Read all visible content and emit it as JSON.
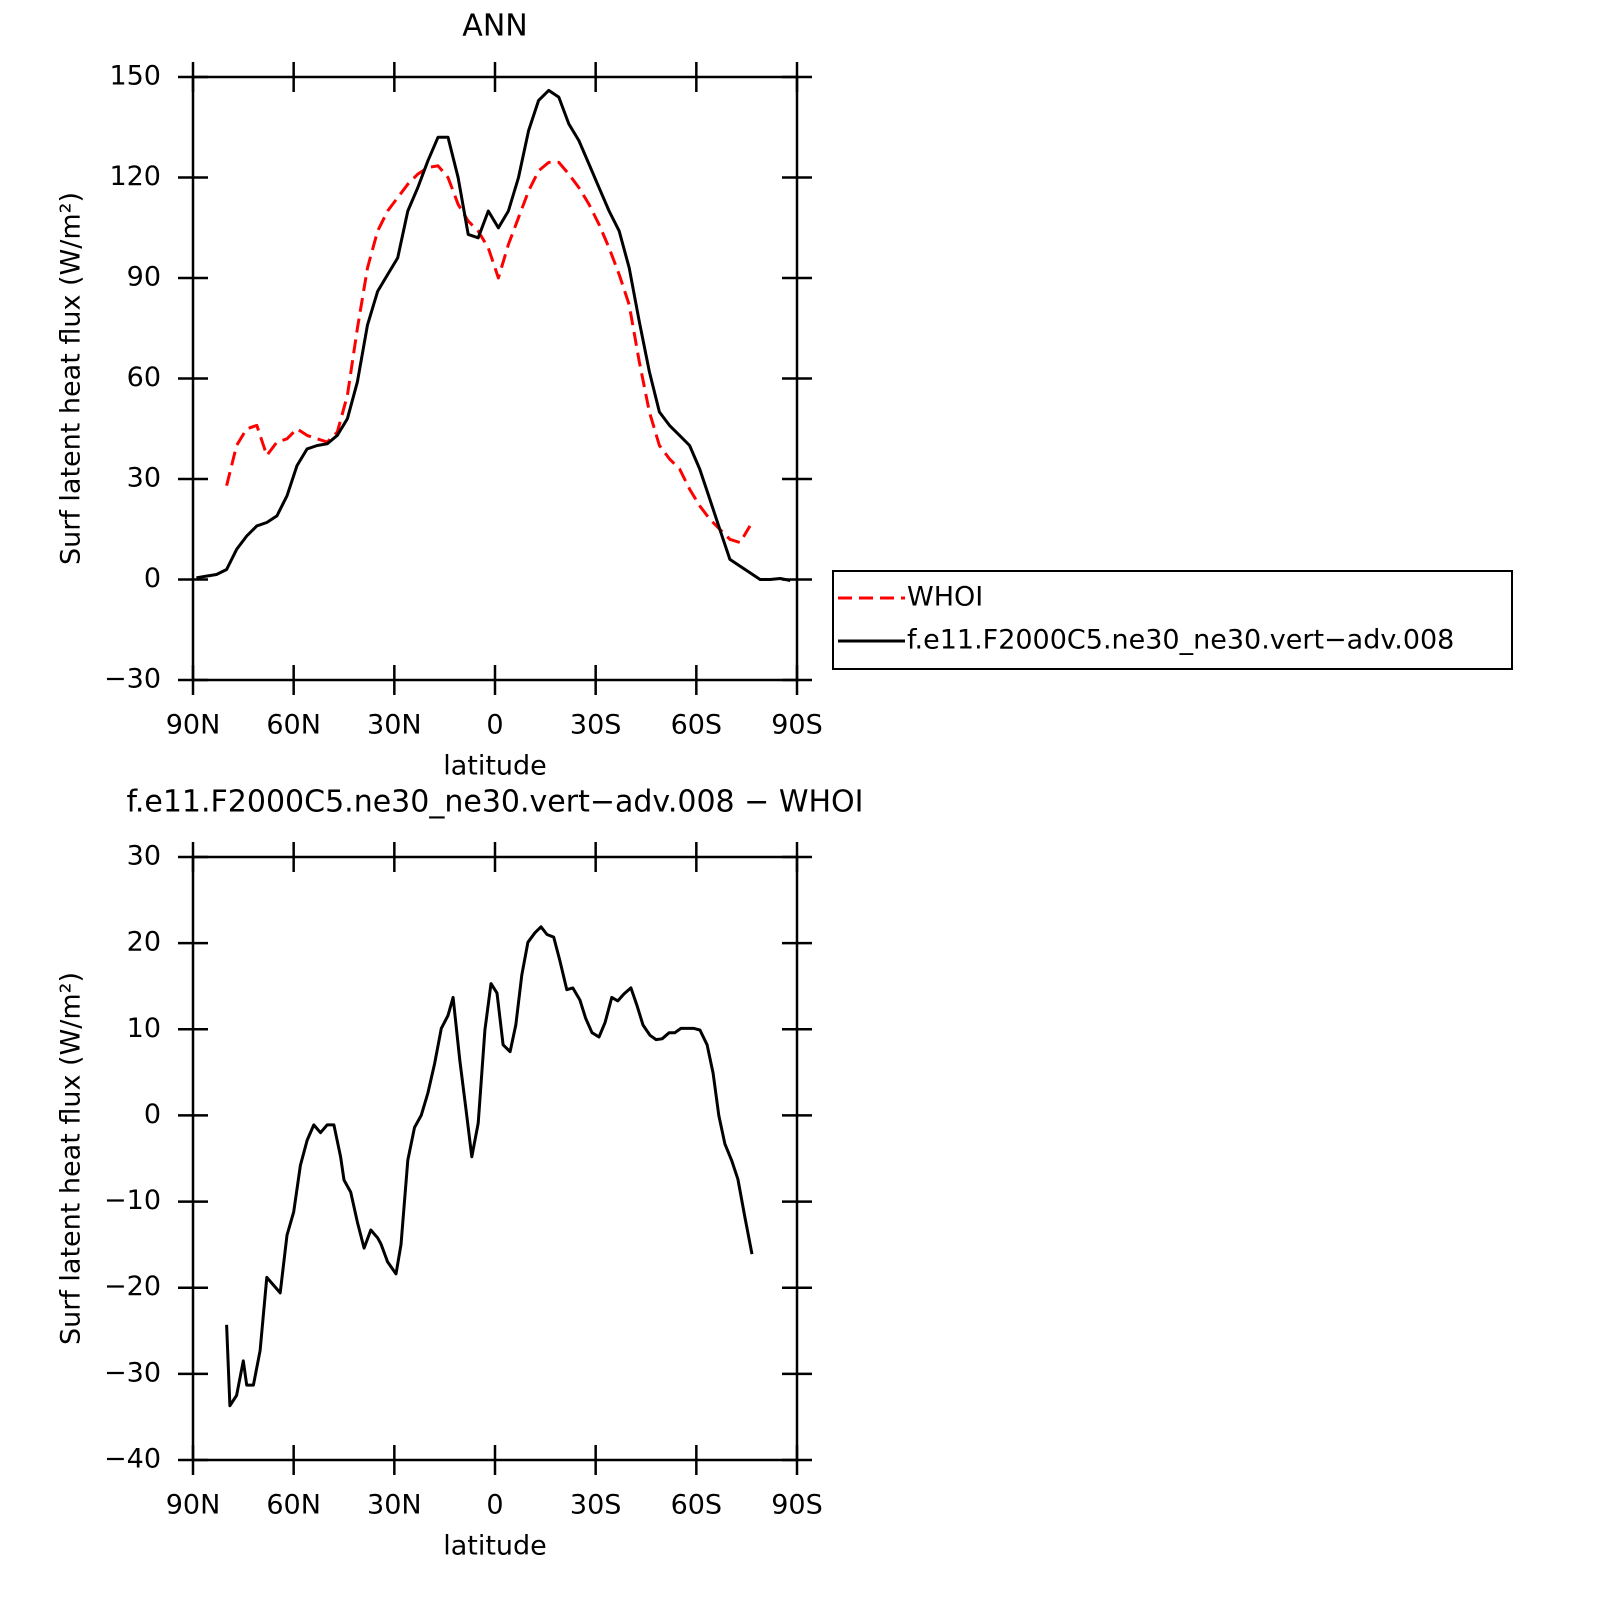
{
  "chart_data": [
    {
      "type": "line",
      "title": "ANN",
      "xlabel": "latitude",
      "ylabel": "Surf latent heat flux (W/m²)",
      "x": [
        89,
        86,
        83,
        80,
        77,
        74,
        71,
        68,
        65,
        62,
        59,
        56,
        53,
        50,
        47,
        44,
        41,
        38,
        35,
        32,
        29,
        26,
        23,
        20,
        17,
        14,
        11,
        8,
        5,
        2,
        -1,
        -4,
        -7,
        -10,
        -13,
        -16,
        -19,
        -22,
        -25,
        -28,
        -31,
        -34,
        -37,
        -40,
        -43,
        -46,
        -49,
        -52,
        -55,
        -58,
        -61,
        -64,
        -67,
        -70,
        -73,
        -76,
        -79,
        -82,
        -85,
        -88
      ],
      "series": [
        {
          "name": "WHOI",
          "color": "#ff0000",
          "linestyle": "dashed",
          "values": [
            null,
            null,
            null,
            28,
            40,
            45,
            46,
            37,
            41,
            42,
            45,
            43,
            42,
            41,
            44,
            55,
            75,
            93,
            104,
            110,
            114,
            118,
            121,
            123,
            123.5,
            120,
            112,
            107,
            104,
            99,
            90,
            100,
            108,
            116,
            122,
            124.5,
            124.5,
            121,
            117,
            112,
            106,
            99,
            91,
            82,
            65,
            50,
            40,
            36,
            33,
            27,
            22,
            18,
            15,
            12,
            11,
            16,
            null,
            null,
            null,
            null
          ]
        },
        {
          "name": "f.e11.F2000C5.ne30_ne30.vert−adv.008",
          "color": "#000000",
          "linestyle": "solid",
          "values": [
            0.5,
            1,
            1.5,
            3,
            9,
            13,
            16,
            17,
            19,
            25,
            34,
            39,
            40,
            40.5,
            43,
            48,
            59,
            76,
            86,
            91,
            96,
            110,
            117,
            125,
            132,
            132,
            120,
            103,
            102,
            110,
            105,
            110,
            120,
            134,
            143,
            146,
            144,
            136,
            131,
            124,
            117,
            110,
            104,
            93,
            77,
            62,
            50,
            46,
            43,
            40,
            33,
            24,
            15,
            6,
            4,
            2,
            0,
            0,
            0.3,
            -0.3
          ]
        }
      ],
      "xlim": [
        90,
        -90
      ],
      "xticks": [
        {
          "value": 90,
          "label": "90N"
        },
        {
          "value": 60,
          "label": "60N"
        },
        {
          "value": 30,
          "label": "30N"
        },
        0,
        {
          "value": -30,
          "label": "30S"
        },
        {
          "value": -60,
          "label": "60S"
        },
        {
          "value": -90,
          "label": "90S"
        }
      ],
      "ylim": [
        -30,
        150
      ],
      "yticks": [
        {
          "value": -30,
          "label": "−30"
        },
        0,
        30,
        60,
        90,
        120,
        150
      ],
      "legend": "right"
    },
    {
      "type": "line",
      "title": "f.e11.F2000C5.ne30_ne30.vert−adv.008 − WHOI",
      "xlabel": "latitude",
      "ylabel": "Surf latent heat flux (W/m²)",
      "x": [
        80,
        79,
        77,
        75,
        74,
        72,
        70,
        68,
        64,
        62,
        60,
        58,
        56,
        54,
        52,
        50,
        48,
        46,
        45,
        43,
        41,
        39,
        37,
        35,
        34,
        32,
        29.5,
        28,
        26,
        24,
        22,
        20,
        18,
        16,
        14,
        12.5,
        10.5,
        8.6,
        6.9,
        5,
        3,
        1.2,
        -0.6,
        -2.4,
        -4.5,
        -6.2,
        -8,
        -9.8,
        -11.9,
        -13.7,
        -15.5,
        -17.5,
        -19.3,
        -21.4,
        -23.2,
        -25.3,
        -27,
        -28.9,
        -31,
        -32.8,
        -34.8,
        -36.6,
        -38.4,
        -40.5,
        -42.3,
        -44.1,
        -46.2,
        -48,
        -49.8,
        -51.9,
        -53.6,
        -55.4,
        -57.5,
        -59.3,
        -61.1,
        -63.2,
        -65,
        -66.7,
        -68.5,
        -70.6,
        -72.4,
        -74.4,
        -76.6
      ],
      "series": [
        {
          "color": "#000000",
          "linestyle": "solid",
          "values": [
            -24.3,
            -33.7,
            -32.5,
            -28.5,
            -31.3,
            -31.3,
            -27.3,
            -18.8,
            -20.6,
            -13.9,
            -11.2,
            -5.8,
            -2.9,
            -1.1,
            -2,
            -1.1,
            -1.1,
            -4.8,
            -7.5,
            -8.9,
            -12.4,
            -15.4,
            -13.3,
            -14.2,
            -14.9,
            -17,
            -18.4,
            -15,
            -5.2,
            -1.4,
            0,
            2.6,
            6,
            10.1,
            11.6,
            13.7,
            6.4,
            0.6,
            -4.8,
            -0.9,
            9.9,
            15.3,
            14.2,
            8.2,
            7.4,
            10.5,
            16.3,
            20.1,
            21.2,
            21.9,
            21,
            20.7,
            18,
            14.6,
            14.8,
            13.4,
            11.3,
            9.6,
            9.1,
            10.8,
            13.7,
            13.3,
            14.1,
            14.8,
            12.8,
            10.5,
            9.3,
            8.8,
            8.9,
            9.6,
            9.6,
            10.1,
            10.1,
            10.1,
            9.9,
            8.2,
            4.9,
            0,
            -3.3,
            -5.3,
            -7.4,
            -11.7,
            -16.1
          ]
        }
      ],
      "xlim": [
        90,
        -90
      ],
      "xticks": [
        {
          "value": 90,
          "label": "90N"
        },
        {
          "value": 60,
          "label": "60N"
        },
        {
          "value": 30,
          "label": "30N"
        },
        0,
        {
          "value": -30,
          "label": "30S"
        },
        {
          "value": -60,
          "label": "60S"
        },
        {
          "value": -90,
          "label": "90S"
        }
      ],
      "ylim": [
        -40,
        30
      ],
      "yticks": [
        {
          "value": -40,
          "label": "−40"
        },
        {
          "value": -30,
          "label": "−30"
        },
        {
          "value": -20,
          "label": "−20"
        },
        {
          "value": -10,
          "label": "−10"
        },
        0,
        10,
        20,
        30
      ]
    }
  ]
}
